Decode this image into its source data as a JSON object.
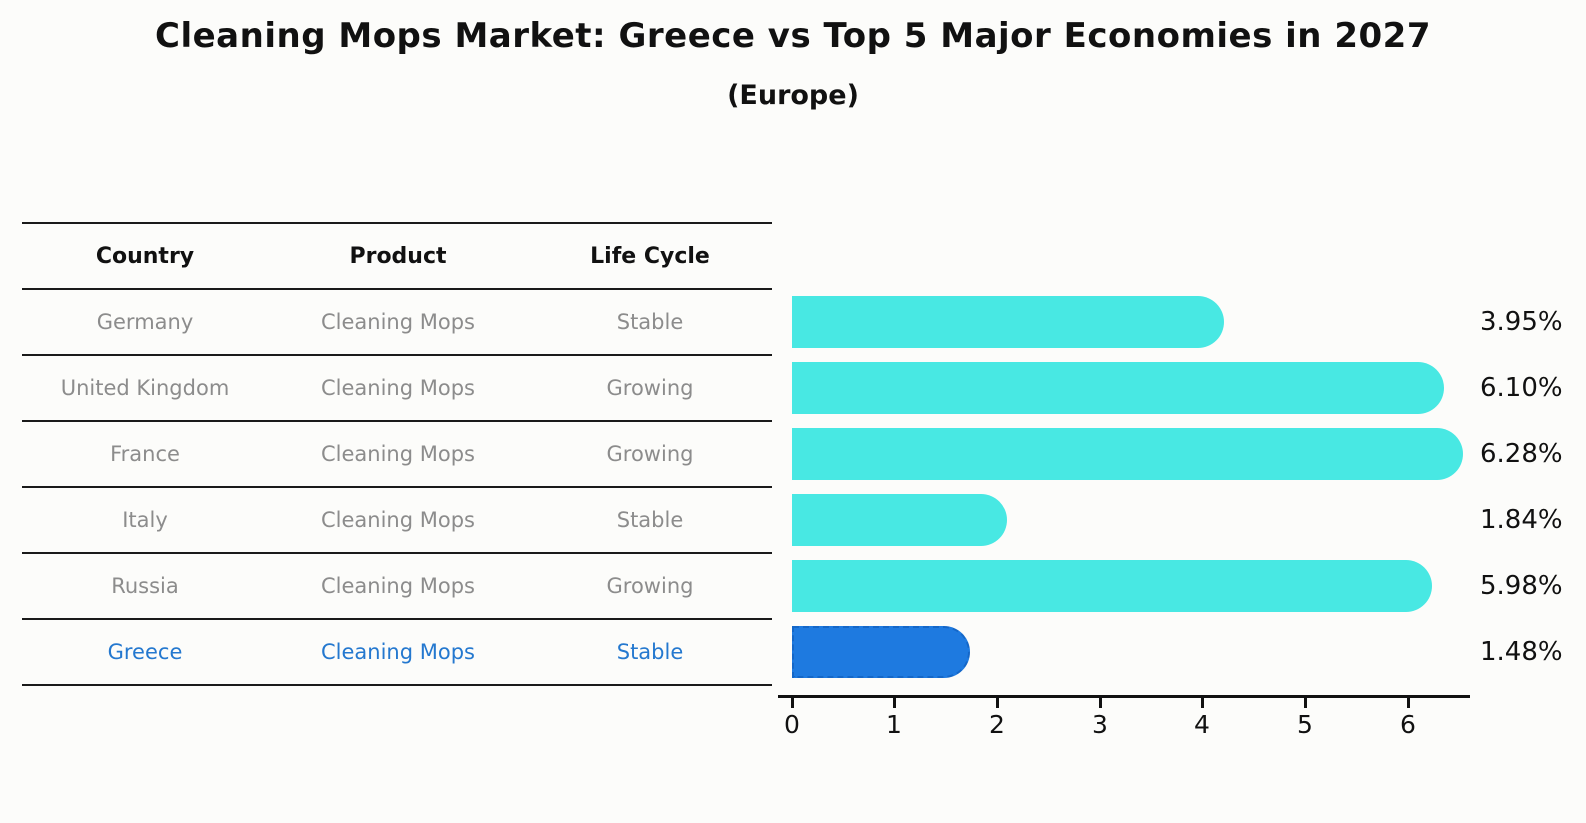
{
  "title": "Cleaning Mops Market: Greece vs Top 5 Major Economies in 2027",
  "subtitle": "(Europe)",
  "table": {
    "headers": {
      "country": "Country",
      "product": "Product",
      "life_cycle": "Life Cycle"
    },
    "rows": [
      {
        "country": "Germany",
        "product": "Cleaning Mops",
        "life_cycle": "Stable",
        "highlight": false
      },
      {
        "country": "United Kingdom",
        "product": "Cleaning Mops",
        "life_cycle": "Growing",
        "highlight": false
      },
      {
        "country": "France",
        "product": "Cleaning Mops",
        "life_cycle": "Growing",
        "highlight": false
      },
      {
        "country": "Italy",
        "product": "Cleaning Mops",
        "life_cycle": "Stable",
        "highlight": false
      },
      {
        "country": "Russia",
        "product": "Cleaning Mops",
        "life_cycle": "Growing",
        "highlight": false
      },
      {
        "country": "Greece",
        "product": "Cleaning Mops",
        "life_cycle": "Stable",
        "highlight": true
      }
    ]
  },
  "chart_data": {
    "type": "bar",
    "orientation": "horizontal",
    "title": "Cleaning Mops Market: Greece vs Top 5 Major Economies in 2027",
    "subtitle": "(Europe)",
    "categories": [
      "Germany",
      "United Kingdom",
      "France",
      "Italy",
      "Russia",
      "Greece"
    ],
    "values": [
      3.95,
      6.1,
      6.28,
      1.84,
      5.98,
      1.48
    ],
    "value_labels": [
      "3.95%",
      "6.10%",
      "6.28%",
      "1.84%",
      "5.98%",
      "1.48%"
    ],
    "x_ticks": [
      "0",
      "1",
      "2",
      "3",
      "4",
      "5",
      "6"
    ],
    "xlim": [
      0,
      6.6
    ],
    "grid": false,
    "legend": false,
    "bar_color": "#48e8e3",
    "highlight_color": "#1e7ae0",
    "highlight_border_color": "#1467c8",
    "highlight_index": 5
  },
  "colors": {
    "background": "#fcfcfa",
    "text": "#111111",
    "text_muted": "#8c8c8c",
    "highlight_text": "#2478cf",
    "axis": "#111111"
  }
}
